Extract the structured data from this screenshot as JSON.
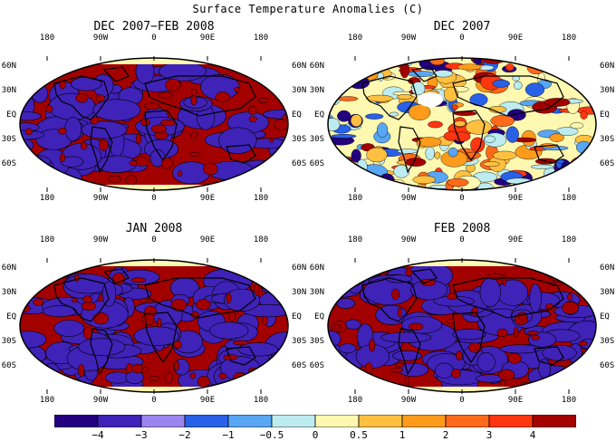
{
  "title": "Surface Temperature Anomalies (C)",
  "lon_labels": [
    "180",
    "90W",
    "0",
    "90E",
    "180"
  ],
  "lat_labels": [
    "60N",
    "30N",
    "EQ",
    "30S",
    "60S"
  ],
  "panels": [
    {
      "title": "DEC 2007−FEB 2008",
      "style": "mixed"
    },
    {
      "title": "DEC 2007",
      "style": "detailed"
    },
    {
      "title": "JAN 2008",
      "style": "mixed"
    },
    {
      "title": "FEB 2008",
      "style": "mixed"
    }
  ],
  "colorbar": {
    "colors": [
      "#230080",
      "#3f22b8",
      "#9b86f0",
      "#2860e8",
      "#58a6f4",
      "#bcecf0",
      "#fff8b0",
      "#ffc040",
      "#ff9b1a",
      "#ff6a1a",
      "#ff3610",
      "#a30000"
    ],
    "labels": [
      "−4",
      "−3",
      "−2",
      "−1",
      "−0.5",
      "0",
      "0.5",
      "1",
      "2",
      "3",
      "4"
    ]
  }
}
